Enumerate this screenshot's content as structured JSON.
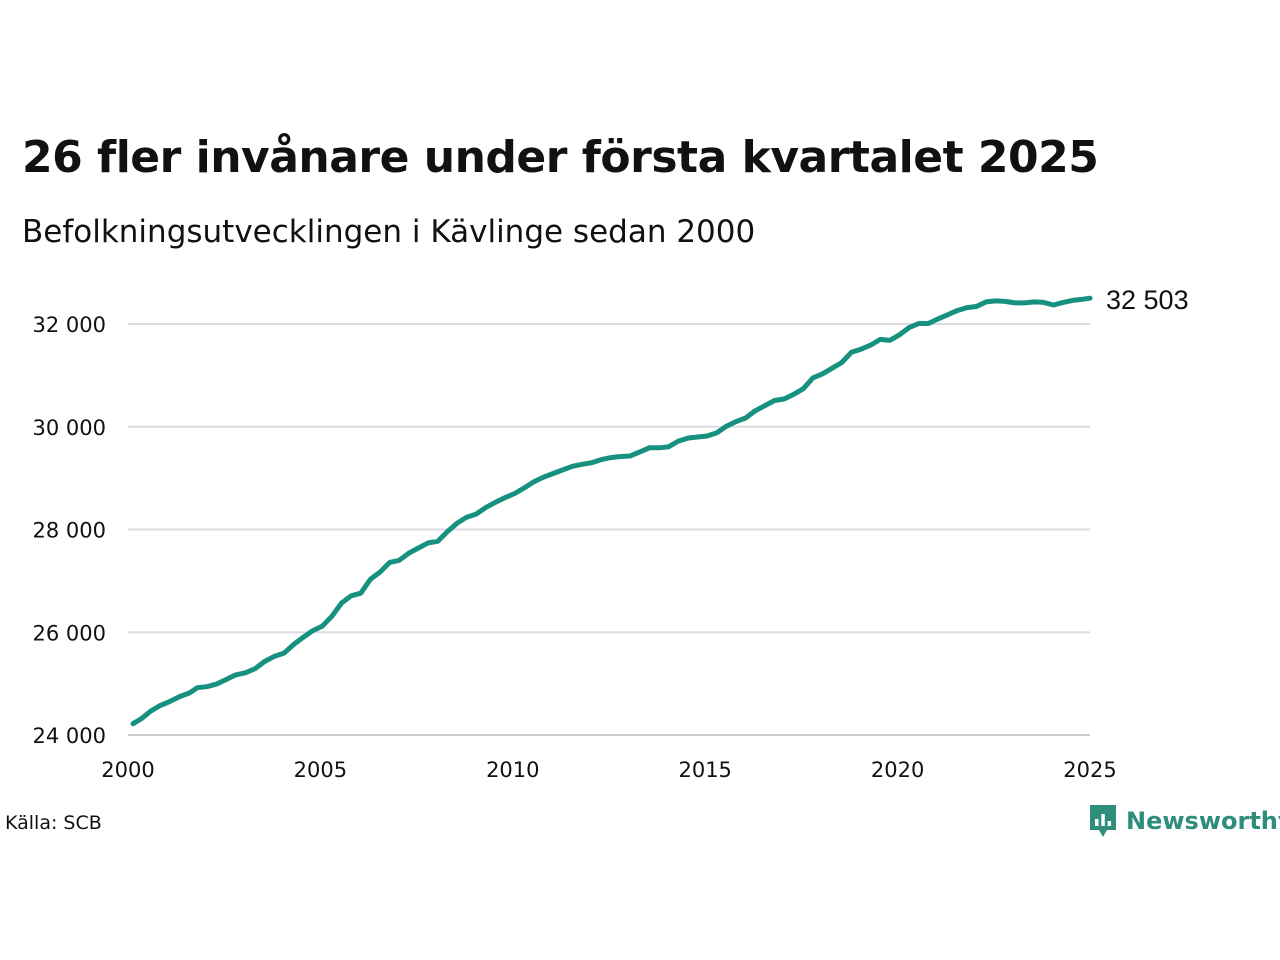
{
  "title": "26 fler invånare under första kvartalet 2025",
  "subtitle": "Befolkningsutvecklingen i Kävlinge sedan 2000",
  "source": "Källa: SCB",
  "brand": {
    "name": "Newsworthy",
    "icon": "newsworthy-logo-icon",
    "color": "#2e8e7b"
  },
  "colors": {
    "line": "#17917f",
    "grid": "#dcdde4"
  },
  "chart_data": {
    "type": "line",
    "title": "26 fler invånare under första kvartalet 2025",
    "subtitle": "Befolkningsutvecklingen i Kävlinge sedan 2000",
    "xlim": [
      2000,
      2025
    ],
    "ylim": [
      24000,
      32500
    ],
    "x_ticks": [
      2000,
      2005,
      2010,
      2015,
      2020,
      2025
    ],
    "x_tick_labels": [
      "2000",
      "2005",
      "2010",
      "2015",
      "2020",
      "2025"
    ],
    "y_ticks": [
      24000,
      26000,
      28000,
      30000,
      32000
    ],
    "y_tick_labels": [
      "24 000",
      "26 000",
      "28 000",
      "30 000",
      "32 000"
    ],
    "grid": "horizontal",
    "last_value_label": "32 503",
    "series": [
      {
        "x": [
          2000.13,
          2000.35,
          2000.58,
          2000.8,
          2001.05,
          2001.35,
          2001.6,
          2001.8,
          2002.05,
          2002.3,
          2002.55,
          2002.8,
          2003.05,
          2003.3,
          2003.55,
          2003.8,
          2004.05,
          2004.3,
          2004.55,
          2004.8,
          2005.05,
          2005.3,
          2005.55,
          2005.8,
          2006.05,
          2006.3,
          2006.55,
          2006.8,
          2007.05,
          2007.3,
          2007.55,
          2007.8,
          2008.05,
          2008.3,
          2008.55,
          2008.8,
          2009.05,
          2009.3,
          2009.55,
          2009.8,
          2010.05,
          2010.3,
          2010.55,
          2010.8,
          2011.05,
          2011.3,
          2011.55,
          2011.8,
          2012.05,
          2012.3,
          2012.55,
          2012.8,
          2013.05,
          2013.3,
          2013.55,
          2013.8,
          2014.05,
          2014.3,
          2014.55,
          2014.8,
          2015.05,
          2015.3,
          2015.55,
          2015.8,
          2016.05,
          2016.3,
          2016.55,
          2016.8,
          2017.05,
          2017.3,
          2017.55,
          2017.8,
          2018.05,
          2018.3,
          2018.55,
          2018.8,
          2019.05,
          2019.3,
          2019.55,
          2019.8,
          2020.05,
          2020.3,
          2020.55,
          2020.8,
          2021.05,
          2021.3,
          2021.55,
          2021.8,
          2022.05,
          2022.3,
          2022.55,
          2022.8,
          2023.05,
          2023.3,
          2023.55,
          2023.8,
          2024.05,
          2024.3,
          2024.55,
          2024.8,
          2025.0
        ],
        "y": [
          24220,
          24320,
          24460,
          24560,
          24640,
          24750,
          24820,
          24920,
          24940,
          24990,
          25080,
          25170,
          25210,
          25290,
          25430,
          25530,
          25590,
          25760,
          25900,
          26030,
          26120,
          26310,
          26570,
          26710,
          26760,
          27030,
          27170,
          27360,
          27400,
          27540,
          27640,
          27740,
          27770,
          27960,
          28120,
          28240,
          28300,
          28430,
          28530,
          28620,
          28700,
          28810,
          28930,
          29020,
          29090,
          29160,
          29230,
          29270,
          29300,
          29360,
          29400,
          29420,
          29430,
          29510,
          29590,
          29590,
          29610,
          29720,
          29780,
          29800,
          29820,
          29880,
          30010,
          30100,
          30170,
          30310,
          30410,
          30510,
          30540,
          30630,
          30740,
          30950,
          31030,
          31140,
          31250,
          31450,
          31510,
          31590,
          31700,
          31680,
          31790,
          31930,
          32010,
          32010,
          32100,
          32180,
          32260,
          32320,
          32340,
          32430,
          32450,
          32440,
          32410,
          32410,
          32430,
          32420,
          32370,
          32420,
          32460,
          32480,
          32503
        ]
      }
    ]
  }
}
